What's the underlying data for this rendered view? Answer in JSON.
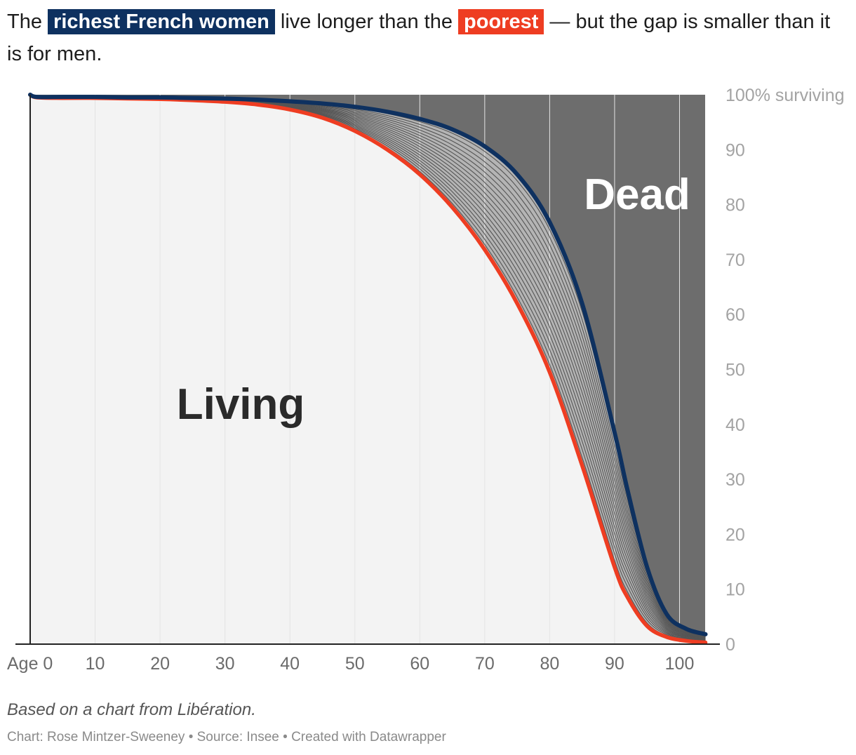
{
  "headline": {
    "part1": "The ",
    "highlight_rich": "richest French women",
    "part2": " live longer than the ",
    "highlight_poor": "poorest",
    "part3": " — but the gap is smaller than it is for men."
  },
  "chart_data": {
    "type": "area",
    "x_tick_labels": [
      "Age 0",
      "10",
      "20",
      "30",
      "40",
      "50",
      "60",
      "70",
      "80",
      "90",
      "100"
    ],
    "y_tick_labels": [
      "0",
      "10",
      "20",
      "30",
      "40",
      "50",
      "60",
      "70",
      "80",
      "90",
      "100% surviving"
    ],
    "xlim": [
      0,
      104
    ],
    "ylim": [
      0,
      100
    ],
    "grid": "vertical",
    "area_labels": {
      "living": "Living",
      "dead": "Dead"
    },
    "x": [
      0,
      1,
      5,
      10,
      15,
      20,
      25,
      30,
      35,
      40,
      45,
      50,
      55,
      60,
      65,
      70,
      75,
      80,
      85,
      90,
      92,
      95,
      98,
      101,
      104
    ],
    "series_richest": [
      100,
      99.6,
      99.6,
      99.6,
      99.5,
      99.5,
      99.4,
      99.3,
      99.1,
      98.8,
      98.4,
      97.8,
      96.9,
      95.6,
      93.7,
      90.6,
      85.5,
      76.8,
      62.0,
      38.5,
      28.0,
      14.0,
      5.5,
      2.8,
      1.8
    ],
    "series_poorest": [
      100,
      99.5,
      99.4,
      99.4,
      99.3,
      99.2,
      99.0,
      98.7,
      98.2,
      97.3,
      95.8,
      93.4,
      90.0,
      85.5,
      79.5,
      71.8,
      62.0,
      49.5,
      32.5,
      14.0,
      8.5,
      3.3,
      1.3,
      0.6,
      0.3
    ],
    "band_count": 20,
    "colors": {
      "richest": "#0e3160",
      "poorest": "#ee3d22",
      "dead_area": "#6d6d6d",
      "living_area": "#f3f3f3",
      "band_fill": "#b4b4b4",
      "band_line": "#555555"
    }
  },
  "footer": {
    "note": "Based on a chart from Libération.",
    "credit": "Chart: Rose Mintzer-Sweeney • Source: Insee • Created with Datawrapper"
  }
}
